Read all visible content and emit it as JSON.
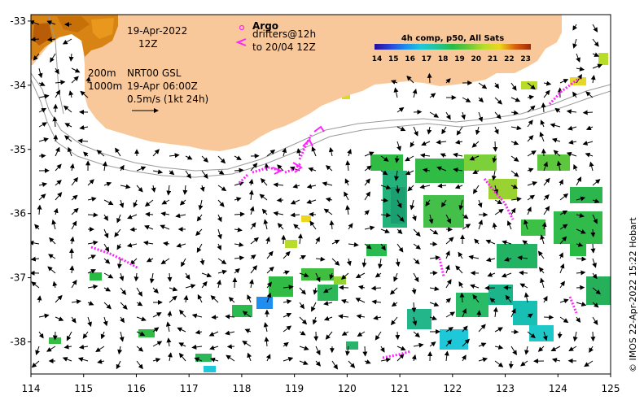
{
  "map": {
    "date": "19-Apr-2022",
    "hour": "12Z",
    "depth_lines": [
      "200m",
      "1000m"
    ],
    "nrt_label": "NRT00 GSL",
    "nrt_time": "19-Apr 06:00Z",
    "scale_text": "0.5m/s (1kt 24h)",
    "argo_label": "Argo",
    "drifters_label": "drifters@12h",
    "drifters_to": "to 20/04 12Z",
    "colorbar_title": "4h comp, p50, All Sats",
    "colorbar_ticks": [
      "14",
      "15",
      "16",
      "17",
      "18",
      "19",
      "20",
      "21",
      "22",
      "23"
    ],
    "colorbar_colors": [
      "#2a0a9a",
      "#2a45d8",
      "#1e8ef0",
      "#1ec8d8",
      "#22c39a",
      "#28bb44",
      "#6cc63a",
      "#b8dc2a",
      "#ecd61e",
      "#f0a010",
      "#d86010",
      "#a02808"
    ],
    "x_ticks": [
      "114",
      "115",
      "116",
      "117",
      "118",
      "119",
      "120",
      "121",
      "122",
      "123",
      "124",
      "125"
    ],
    "y_ticks": [
      "-33",
      "-34",
      "-35",
      "-36",
      "-37",
      "-38"
    ],
    "x_range": [
      114,
      125
    ],
    "y_range": [
      -38.5,
      -32.9
    ],
    "credit": "© IMOS 22-Apr-2022 15:22 Hobart",
    "land_color": "#f8c89a",
    "drifter_color": "#ff22ff"
  }
}
